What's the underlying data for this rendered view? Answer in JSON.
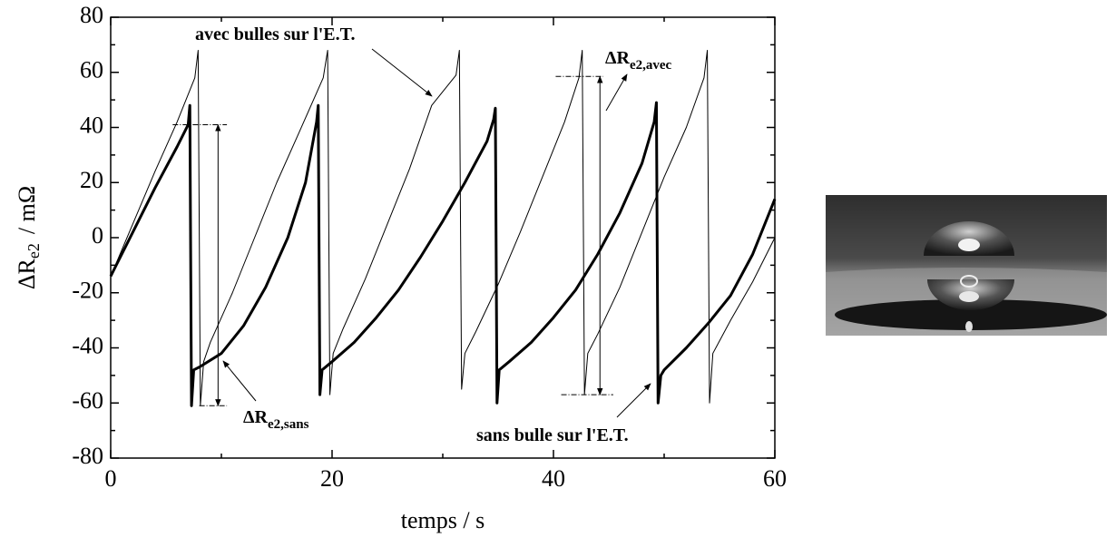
{
  "chart_data": {
    "type": "line",
    "x_label": "temps / s",
    "y_label": {
      "text": "ΔR",
      "sub": "e2",
      "unit": "/ mΩ"
    },
    "xlim": [
      0,
      60
    ],
    "xticks": [
      0,
      20,
      40,
      60
    ],
    "xticks_minor": [
      10,
      30,
      50
    ],
    "ylim": [
      -80,
      80
    ],
    "yticks": [
      -80,
      -60,
      -40,
      -20,
      0,
      20,
      40,
      60,
      80
    ],
    "yticks_minor": [
      -70,
      -50,
      -30,
      -10,
      10,
      30,
      50,
      70
    ],
    "grid": false,
    "series": [
      {
        "color": "#000000",
        "linewidth": 1,
        "x": [
          0,
          2,
          4,
          6,
          7.0,
          7.6,
          7.9,
          8.1,
          8.4,
          9,
          11,
          13,
          15,
          17,
          19.2,
          19.6,
          19.8,
          20.1,
          21,
          23,
          25,
          27,
          29,
          31.2,
          31.5,
          31.7,
          32,
          33,
          35,
          37,
          39,
          41,
          42.3,
          42.6,
          42.8,
          43.1,
          44,
          46,
          48,
          50,
          52,
          53.6,
          53.9,
          54.1,
          54.4,
          56,
          58,
          60
        ],
        "values": [
          -14,
          5,
          24,
          42,
          52,
          58,
          68,
          -61,
          -45,
          -38,
          -20,
          0,
          20,
          38,
          58,
          68,
          -57,
          -42,
          -33,
          -15,
          5,
          25,
          48,
          59,
          68,
          -55,
          -42,
          -34,
          -17,
          2,
          22,
          42,
          58,
          68,
          -57,
          -42,
          -35,
          -18,
          2,
          22,
          40,
          58,
          68,
          -60,
          -42,
          -30,
          -16,
          0
        ]
      },
      {
        "color": "#000000",
        "linewidth": 3,
        "x": [
          0,
          2,
          4,
          6,
          7.0,
          7.15,
          7.3,
          7.5,
          8,
          10,
          12,
          14,
          16,
          17.6,
          18.6,
          18.75,
          18.9,
          19.1,
          20,
          22,
          24,
          26,
          28,
          30,
          32,
          34,
          34.6,
          34.75,
          34.9,
          35.1,
          36,
          38,
          40,
          42,
          44,
          46,
          48,
          49.1,
          49.3,
          49.45,
          49.7,
          50,
          52,
          54,
          56,
          58,
          60
        ],
        "values": [
          -14,
          2,
          18,
          33,
          41,
          48,
          -61,
          -48,
          -47,
          -42,
          -32,
          -18,
          0,
          20,
          42,
          48,
          -57,
          -48,
          -45,
          -38,
          -29,
          -19,
          -7,
          6,
          20,
          35,
          43,
          47,
          -60,
          -48,
          -45,
          -38,
          -29,
          -19,
          -6,
          9,
          27,
          42,
          49,
          -60,
          -50,
          -48,
          -40,
          -31,
          -21,
          -6,
          14
        ]
      }
    ],
    "ranges": [
      {
        "x": 9.7,
        "low": -61,
        "high": 41,
        "low_span": [
          8,
          10.5
        ],
        "high_span": [
          5.6,
          10.5
        ]
      },
      {
        "x": 44.2,
        "low": -57,
        "high": 58.5,
        "low_span": [
          40.7,
          45.4
        ],
        "high_span": [
          40.2,
          44.5
        ]
      }
    ],
    "annotations": [
      {
        "text": "avec bulles sur l'E.T."
      },
      {
        "text": "ΔR",
        "sub": "e2,avec"
      },
      {
        "text": "ΔR",
        "sub": "e2,sans"
      },
      {
        "text": "sans bulle sur l'E.T."
      }
    ]
  }
}
